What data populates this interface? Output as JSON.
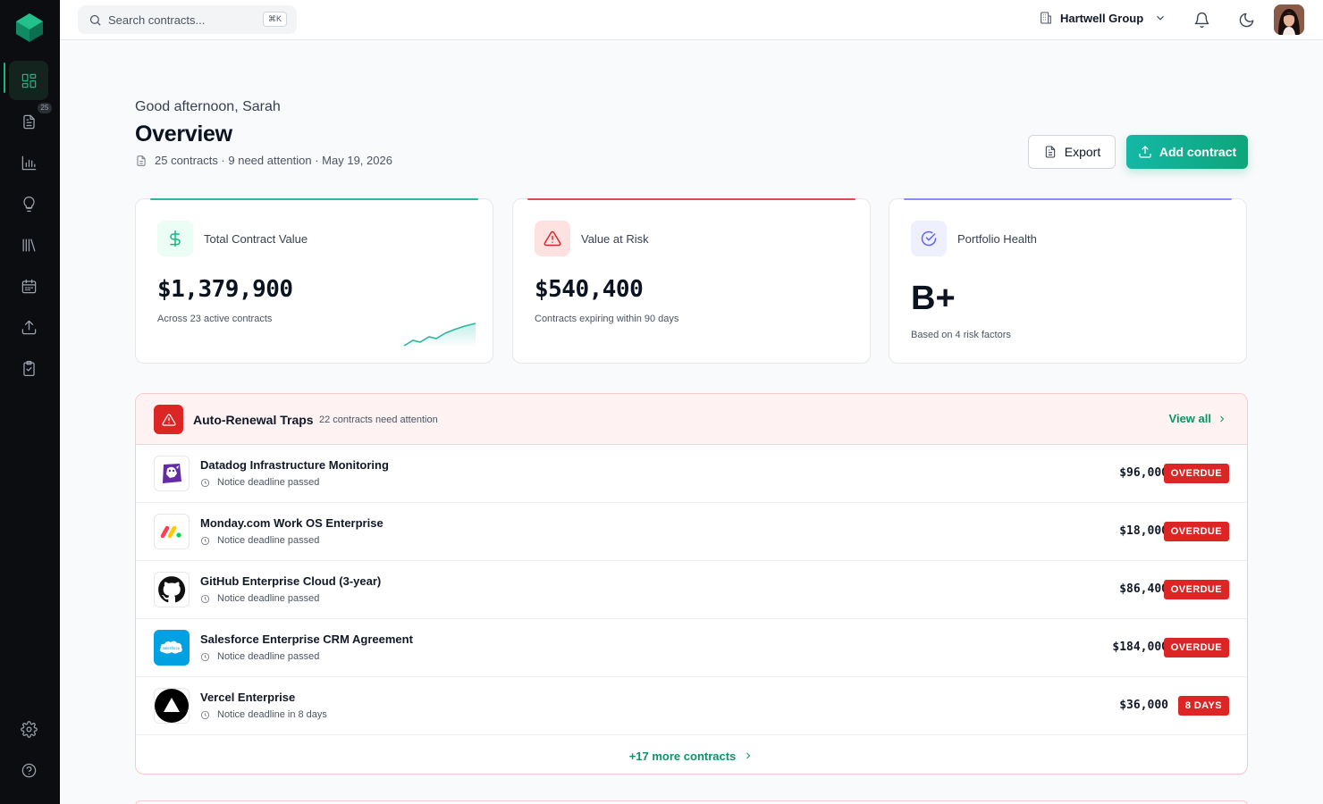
{
  "colors": {
    "accent": "#10b981",
    "danger": "#dc2626",
    "sidebar": "#0b0d10",
    "brand_gradient_start": "#14b8a6",
    "brand_gradient_end": "#0ea57a"
  },
  "sidebar": {
    "logo": "app-logo",
    "items": [
      {
        "icon": "dashboard-grid-icon",
        "active": true
      },
      {
        "icon": "document-icon",
        "badge": "25"
      },
      {
        "icon": "bar-chart-icon"
      },
      {
        "icon": "lightbulb-icon"
      },
      {
        "icon": "library-icon"
      },
      {
        "icon": "calendar-icon"
      },
      {
        "icon": "upload-icon"
      },
      {
        "icon": "clipboard-check-icon"
      }
    ],
    "bottom_items": [
      {
        "icon": "gear-icon"
      },
      {
        "icon": "help-circle-icon"
      }
    ]
  },
  "topbar": {
    "search_placeholder": "Search contracts...",
    "search_shortcut": "⌘K",
    "org_name": "Hartwell Group",
    "icons": [
      "building-icon",
      "chevron-down-icon",
      "bell-icon",
      "moon-icon",
      "user-avatar"
    ]
  },
  "header": {
    "greeting": "Good afternoon, Sarah",
    "title": "Overview",
    "meta": "25 contracts · 9 need attention · May 19, 2026",
    "export_label": "Export",
    "add_label": "Add contract"
  },
  "stats": [
    {
      "label": "Total Contract Value",
      "value": "$1,379,900",
      "sub": "Across 23 active contracts",
      "icon": "dollar-icon",
      "accent": "#2bb6a0"
    },
    {
      "label": "Value at Risk",
      "value": "$540,400",
      "sub": "Contracts expiring within 90 days",
      "icon": "warning-triangle-icon",
      "accent": "#e5484d"
    },
    {
      "label": "Portfolio Health",
      "value": "B+",
      "sub": "Based on 4 risk factors",
      "icon": "check-circle-icon",
      "accent": "#8b8cf6"
    }
  ],
  "traps": {
    "title": "Auto-Renewal Traps",
    "count_text": "22 contracts need attention",
    "view_all": "View all",
    "rows": [
      {
        "name": "Datadog Infrastructure Monitoring",
        "note": "Notice deadline passed",
        "amount": "$96,000",
        "badge": "OVERDUE",
        "logo": "datadog-logo"
      },
      {
        "name": "Monday.com Work OS Enterprise",
        "note": "Notice deadline passed",
        "amount": "$18,000",
        "badge": "OVERDUE",
        "logo": "monday-logo"
      },
      {
        "name": "GitHub Enterprise Cloud (3-year)",
        "note": "Notice deadline passed",
        "amount": "$86,400",
        "badge": "OVERDUE",
        "logo": "github-logo"
      },
      {
        "name": "Salesforce Enterprise CRM Agreement",
        "note": "Notice deadline passed",
        "amount": "$184,000",
        "badge": "OVERDUE",
        "logo": "salesforce-logo",
        "logo_text": "salesforce"
      },
      {
        "name": "Vercel Enterprise",
        "note": "Notice deadline in 8 days",
        "amount": "$36,000",
        "badge": "8 DAYS",
        "logo": "vercel-logo"
      }
    ],
    "more_text": "+17 more contracts"
  }
}
